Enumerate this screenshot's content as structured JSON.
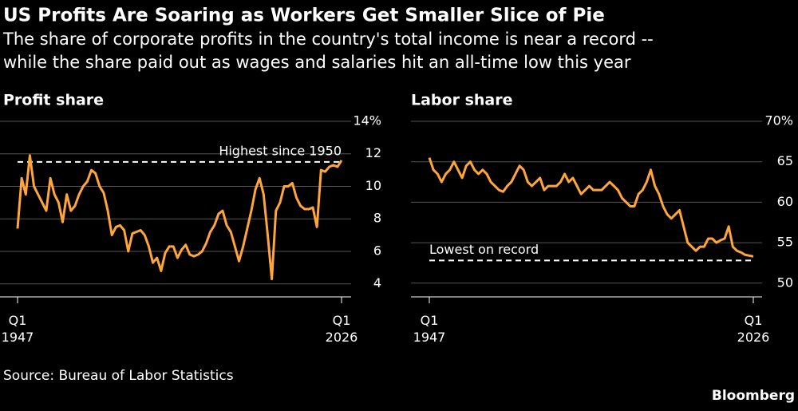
{
  "header": {
    "title": "US Profits Are Soaring as Workers Get Smaller Slice of Pie",
    "subtitle_lines": [
      "The share of corporate profits in the country's total income is near a record --",
      "while the share paid out as wages and salaries hit an all-time low this year"
    ]
  },
  "chart_data": [
    {
      "type": "line",
      "title": "Profit share",
      "color": "#ffa53a",
      "grid": true,
      "x": [
        1947,
        1948,
        1949,
        1950,
        1951,
        1952,
        1953,
        1954,
        1955,
        1956,
        1957,
        1958,
        1959,
        1960,
        1961,
        1962,
        1963,
        1964,
        1965,
        1966,
        1967,
        1968,
        1969,
        1970,
        1971,
        1972,
        1973,
        1974,
        1975,
        1976,
        1977,
        1978,
        1979,
        1980,
        1981,
        1982,
        1983,
        1984,
        1985,
        1986,
        1987,
        1988,
        1989,
        1990,
        1991,
        1992,
        1993,
        1994,
        1995,
        1996,
        1997,
        1998,
        1999,
        2000,
        2001,
        2002,
        2003,
        2004,
        2005,
        2006,
        2007,
        2008,
        2009,
        2010,
        2011,
        2012,
        2013,
        2014,
        2015,
        2016,
        2017,
        2018,
        2019,
        2020,
        2021,
        2022,
        2023,
        2024,
        2025,
        2026
      ],
      "values": [
        7.4,
        10.5,
        9.5,
        11.9,
        10,
        9.5,
        9,
        8.5,
        10.5,
        9.5,
        9,
        7.8,
        9.5,
        8.5,
        8.8,
        9.5,
        10,
        10.3,
        11,
        10.8,
        10,
        9.6,
        8.5,
        7,
        7.5,
        7.6,
        7.3,
        6,
        7.1,
        7.2,
        7.3,
        7,
        6.3,
        5.3,
        5.6,
        4.8,
        5.9,
        6.3,
        6.3,
        5.6,
        6.1,
        6.4,
        5.8,
        5.7,
        5.8,
        6,
        6.5,
        7.2,
        7.6,
        8.3,
        8.5,
        7.6,
        7.2,
        6.3,
        5.4,
        6.3,
        7.4,
        8.5,
        9.8,
        10.5,
        9.5,
        7,
        4.3,
        8.5,
        9,
        10,
        10,
        10.2,
        9.3,
        8.8,
        8.6,
        8.6,
        8.7,
        7.5,
        11,
        10.9,
        11.2,
        11.3,
        11.2,
        11.6
      ],
      "xlim": [
        1947,
        2026
      ],
      "xticks": [
        {
          "value": 1947,
          "label": "Q1 1947"
        },
        {
          "value": 2026,
          "label": "Q1 2026"
        }
      ],
      "ylim": [
        3.2,
        14
      ],
      "yticks": [
        4,
        6,
        8,
        10,
        12,
        {
          "value": 14,
          "label": "14%"
        }
      ],
      "annotation": {
        "text": "Highest since 1950",
        "value": 11.5
      }
    },
    {
      "type": "line",
      "title": "Labor share",
      "color": "#ffa53a",
      "grid": true,
      "x": [
        1947,
        1948,
        1949,
        1950,
        1951,
        1952,
        1953,
        1954,
        1955,
        1956,
        1957,
        1958,
        1959,
        1960,
        1961,
        1962,
        1963,
        1964,
        1965,
        1966,
        1967,
        1968,
        1969,
        1970,
        1971,
        1972,
        1973,
        1974,
        1975,
        1976,
        1977,
        1978,
        1979,
        1980,
        1981,
        1982,
        1983,
        1984,
        1985,
        1986,
        1987,
        1988,
        1989,
        1990,
        1991,
        1992,
        1993,
        1994,
        1995,
        1996,
        1997,
        1998,
        1999,
        2000,
        2001,
        2002,
        2003,
        2004,
        2005,
        2006,
        2007,
        2008,
        2009,
        2010,
        2011,
        2012,
        2013,
        2014,
        2015,
        2016,
        2017,
        2018,
        2019,
        2020,
        2021,
        2022,
        2023,
        2024,
        2025,
        2026
      ],
      "values": [
        65.5,
        64,
        63.5,
        62.5,
        63.5,
        64,
        65,
        64,
        63,
        64.5,
        65,
        64,
        63.5,
        64,
        63.5,
        62.5,
        62,
        61.5,
        61.3,
        62,
        62.5,
        63.5,
        64.5,
        64,
        62.5,
        62,
        62.5,
        63,
        61.5,
        62,
        62,
        62,
        62.5,
        63.5,
        62.5,
        63,
        62,
        61,
        61.5,
        62,
        61.5,
        61.5,
        61.5,
        62,
        62.5,
        62,
        61.5,
        60.5,
        60,
        59.5,
        59.5,
        61,
        61.5,
        62.5,
        64,
        62,
        61,
        59.5,
        58.5,
        58,
        58.5,
        59,
        57,
        55,
        54.5,
        54,
        54.5,
        54.5,
        55.5,
        55.5,
        55,
        55.3,
        55.5,
        57,
        54.5,
        54,
        53.8,
        53.5,
        53.4,
        53.3
      ],
      "xlim": [
        1947,
        2026
      ],
      "xticks": [
        {
          "value": 1947,
          "label": "Q1 1947"
        },
        {
          "value": 2026,
          "label": "Q1 2026"
        }
      ],
      "ylim": [
        48.3,
        70
      ],
      "yticks": [
        50,
        55,
        60,
        65,
        {
          "value": 70,
          "label": "70%"
        }
      ],
      "annotation": {
        "text": "Lowest on record",
        "value": 52.8
      }
    }
  ],
  "source": "Source: Bureau of Labor Statistics",
  "logo": "Bloomberg"
}
